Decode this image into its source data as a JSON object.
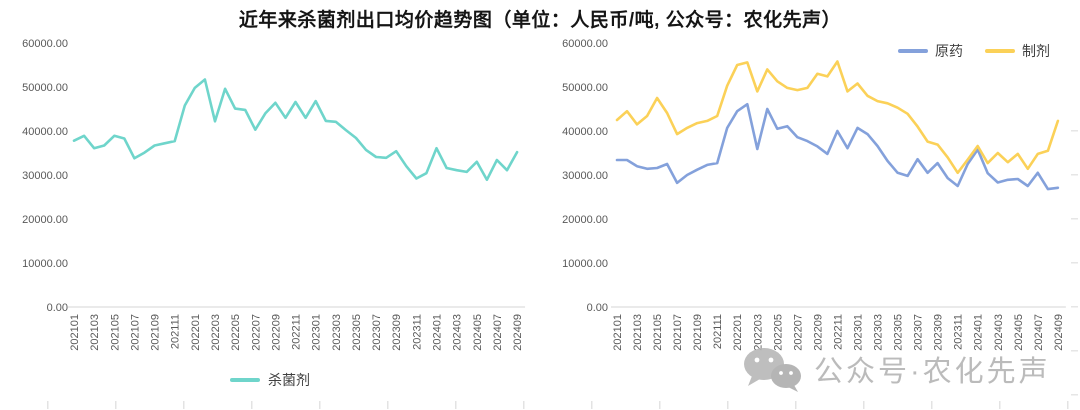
{
  "title": "近年来杀菌剂出口均价趋势图（单位：人民币/吨, 公众号：农化先声）",
  "watermark": {
    "text": "公众号·农化先声",
    "icon": "wechat-icon"
  },
  "axis": {
    "y_tick_labels": [
      "0.00",
      "10000.00",
      "20000.00",
      "30000.00",
      "40000.00",
      "50000.00",
      "60000.00"
    ],
    "y_tick_values": [
      0,
      10000,
      20000,
      30000,
      40000,
      50000,
      60000
    ],
    "x_tick_every": 2
  },
  "chart_data": [
    {
      "type": "line",
      "name": "fungicide-total-price-trend",
      "title": "近年来杀菌剂出口均价趋势图",
      "unit": "人民币/吨",
      "ylim": [
        0,
        60000
      ],
      "grid": false,
      "legend_position": "bottom-center",
      "categories": [
        "202101",
        "202102",
        "202103",
        "202104",
        "202105",
        "202106",
        "202107",
        "202108",
        "202109",
        "202110",
        "202111",
        "202112",
        "202201",
        "202202",
        "202203",
        "202204",
        "202205",
        "202206",
        "202207",
        "202208",
        "202209",
        "202210",
        "202211",
        "202212",
        "202301",
        "202302",
        "202303",
        "202304",
        "202305",
        "202306",
        "202307",
        "202308",
        "202309",
        "202310",
        "202311",
        "202312",
        "202401",
        "202402",
        "202403",
        "202404",
        "202405",
        "202406",
        "202407",
        "202408",
        "202409"
      ],
      "series": [
        {
          "name": "杀菌剂",
          "color": "#6FD5CB",
          "values": [
            37800,
            38900,
            36100,
            36700,
            38900,
            38300,
            33800,
            35100,
            36700,
            37200,
            37700,
            45800,
            49800,
            51700,
            42200,
            49600,
            45100,
            44800,
            40300,
            44000,
            46400,
            43000,
            46600,
            43000,
            46800,
            42300,
            42100,
            40200,
            38400,
            35700,
            34100,
            33900,
            35400,
            32000,
            29200,
            30400,
            36100,
            31600,
            31100,
            30700,
            33000,
            28900,
            33400,
            31100,
            35200
          ]
        }
      ]
    },
    {
      "type": "line",
      "name": "api-vs-formulation-price-trend",
      "title": "原药与制剂出口均价",
      "unit": "人民币/吨",
      "ylim": [
        0,
        60000
      ],
      "grid": false,
      "legend_position": "top-right",
      "categories": [
        "202101",
        "202102",
        "202103",
        "202104",
        "202105",
        "202106",
        "202107",
        "202108",
        "202109",
        "202110",
        "202111",
        "202112",
        "202201",
        "202202",
        "202203",
        "202204",
        "202205",
        "202206",
        "202207",
        "202208",
        "202209",
        "202210",
        "202211",
        "202212",
        "202301",
        "202302",
        "202303",
        "202304",
        "202305",
        "202306",
        "202307",
        "202308",
        "202309",
        "202310",
        "202311",
        "202312",
        "202401",
        "202402",
        "202403",
        "202404",
        "202405",
        "202406",
        "202407",
        "202408",
        "202409"
      ],
      "series": [
        {
          "name": "原药",
          "color": "#84A1DB",
          "values": [
            33400,
            33400,
            32000,
            31400,
            31600,
            32500,
            28200,
            30000,
            31200,
            32300,
            32700,
            40700,
            44500,
            46100,
            35900,
            45000,
            40500,
            41100,
            38600,
            37700,
            36500,
            34800,
            40000,
            36100,
            40700,
            39300,
            36600,
            33200,
            30500,
            29800,
            33600,
            30500,
            32700,
            29300,
            27500,
            32500,
            35800,
            30400,
            28300,
            28900,
            29100,
            27500,
            30500,
            26800,
            27100
          ]
        },
        {
          "name": "制剂",
          "color": "#FBD158",
          "values": [
            42500,
            44500,
            41500,
            43400,
            47500,
            44100,
            39300,
            40700,
            41800,
            42300,
            43400,
            50300,
            55000,
            55600,
            49000,
            54000,
            51300,
            49800,
            49300,
            49800,
            53000,
            52400,
            55800,
            49000,
            50800,
            48000,
            46800,
            46300,
            45300,
            43900,
            41000,
            37600,
            36900,
            34000,
            30500,
            33500,
            36600,
            32700,
            35000,
            32900,
            34800,
            31400,
            34800,
            35500,
            42300
          ]
        }
      ]
    }
  ]
}
